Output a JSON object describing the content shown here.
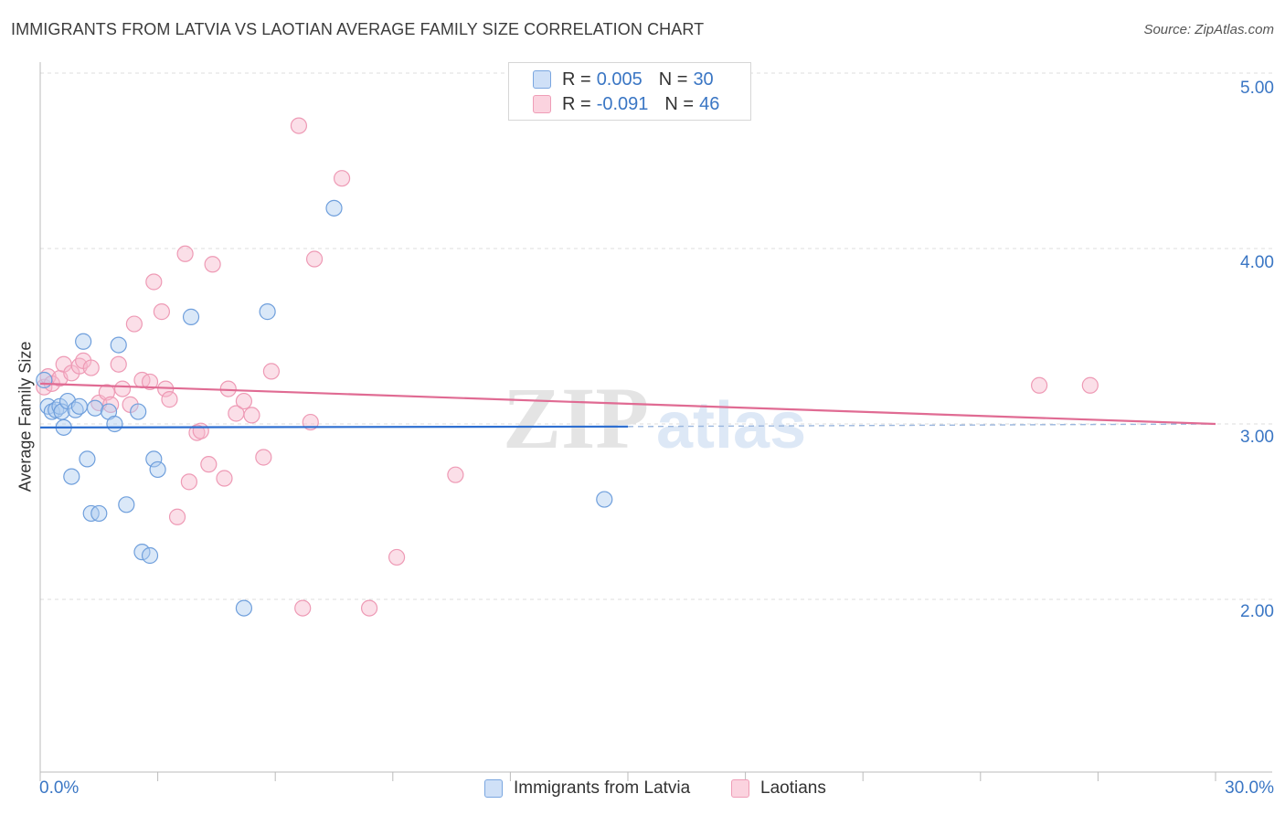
{
  "title": "IMMIGRANTS FROM LATVIA VS LAOTIAN AVERAGE FAMILY SIZE CORRELATION CHART",
  "source": "Source: ZipAtlas.com",
  "watermark": "ZIPatlas",
  "colors": {
    "blue": "#3a76c4",
    "blue_fill": "#aecbf0",
    "blue_line": "#2e6fd0",
    "pink_fill": "#f6b8cb",
    "pink_line": "#e06b93",
    "grid": "#dddddd"
  },
  "legend": {
    "latvia": {
      "r_label": "R =",
      "r_value": "0.005",
      "n_label": "N =",
      "n_value": "30"
    },
    "laotians": {
      "r_label": "R =",
      "r_value": "-0.091",
      "n_label": "N =",
      "n_value": "46"
    }
  },
  "chart_data": {
    "type": "scatter",
    "title": "IMMIGRANTS FROM LATVIA VS LAOTIAN AVERAGE FAMILY SIZE CORRELATION CHART",
    "xlabel": "",
    "ylabel": "Average Family Size",
    "xlim": [
      0,
      30
    ],
    "ylim": [
      1.0,
      5.1
    ],
    "x_tick_labels": [
      "0.0%",
      "30.0%"
    ],
    "y_ticks": [
      2.0,
      3.0,
      4.0,
      5.0
    ],
    "y_tick_labels": [
      "2.00",
      "3.00",
      "4.00",
      "5.00"
    ],
    "grid": true,
    "legend_position": "bottom",
    "series": [
      {
        "name": "Immigrants from Latvia",
        "color": "#aecbf0",
        "points": [
          [
            0.1,
            3.25
          ],
          [
            0.2,
            3.1
          ],
          [
            0.3,
            3.07
          ],
          [
            0.4,
            3.08
          ],
          [
            0.5,
            3.1
          ],
          [
            0.55,
            3.07
          ],
          [
            0.6,
            2.98
          ],
          [
            0.7,
            3.13
          ],
          [
            0.8,
            2.7
          ],
          [
            0.9,
            3.08
          ],
          [
            1.0,
            3.1
          ],
          [
            1.1,
            3.47
          ],
          [
            1.2,
            2.8
          ],
          [
            1.3,
            2.49
          ],
          [
            1.4,
            3.09
          ],
          [
            1.5,
            2.49
          ],
          [
            1.75,
            3.07
          ],
          [
            1.9,
            3.0
          ],
          [
            2.0,
            3.45
          ],
          [
            2.2,
            2.54
          ],
          [
            2.5,
            3.07
          ],
          [
            2.6,
            2.27
          ],
          [
            2.8,
            2.25
          ],
          [
            2.9,
            2.8
          ],
          [
            3.0,
            2.74
          ],
          [
            3.85,
            3.61
          ],
          [
            5.2,
            1.95
          ],
          [
            5.8,
            3.64
          ],
          [
            7.5,
            4.23
          ],
          [
            14.4,
            2.57
          ]
        ],
        "trend": {
          "x": [
            0,
            15
          ],
          "y": [
            2.98,
            2.985
          ]
        },
        "trend_extension": {
          "x": [
            15,
            30
          ],
          "y": [
            2.985,
            3.0
          ]
        }
      },
      {
        "name": "Laotians",
        "color": "#f6b8cb",
        "points": [
          [
            0.1,
            3.21
          ],
          [
            0.2,
            3.27
          ],
          [
            0.3,
            3.23
          ],
          [
            0.5,
            3.26
          ],
          [
            0.6,
            3.34
          ],
          [
            0.8,
            3.29
          ],
          [
            1.0,
            3.33
          ],
          [
            1.1,
            3.36
          ],
          [
            1.3,
            3.32
          ],
          [
            1.5,
            3.12
          ],
          [
            1.7,
            3.18
          ],
          [
            1.8,
            3.11
          ],
          [
            2.0,
            3.34
          ],
          [
            2.1,
            3.2
          ],
          [
            2.3,
            3.11
          ],
          [
            2.4,
            3.57
          ],
          [
            2.6,
            3.25
          ],
          [
            2.8,
            3.24
          ],
          [
            2.9,
            3.81
          ],
          [
            3.1,
            3.64
          ],
          [
            3.2,
            3.2
          ],
          [
            3.3,
            3.14
          ],
          [
            3.5,
            2.47
          ],
          [
            3.7,
            3.97
          ],
          [
            3.8,
            2.67
          ],
          [
            4.0,
            2.95
          ],
          [
            4.1,
            2.96
          ],
          [
            4.3,
            2.77
          ],
          [
            4.4,
            3.91
          ],
          [
            4.7,
            2.69
          ],
          [
            4.8,
            3.2
          ],
          [
            5.0,
            3.06
          ],
          [
            5.2,
            3.13
          ],
          [
            5.4,
            3.05
          ],
          [
            5.7,
            2.81
          ],
          [
            5.9,
            3.3
          ],
          [
            6.6,
            4.7
          ],
          [
            6.7,
            1.95
          ],
          [
            6.9,
            3.01
          ],
          [
            7.0,
            3.94
          ],
          [
            7.7,
            4.4
          ],
          [
            8.4,
            1.95
          ],
          [
            9.1,
            2.24
          ],
          [
            10.6,
            2.71
          ],
          [
            25.5,
            3.22
          ],
          [
            26.8,
            3.22
          ]
        ],
        "trend": {
          "x": [
            0,
            30
          ],
          "y": [
            3.23,
            3.0
          ]
        }
      }
    ]
  },
  "bottom_legend": {
    "latvia_label": "Immigrants from Latvia",
    "laotians_label": "Laotians"
  }
}
